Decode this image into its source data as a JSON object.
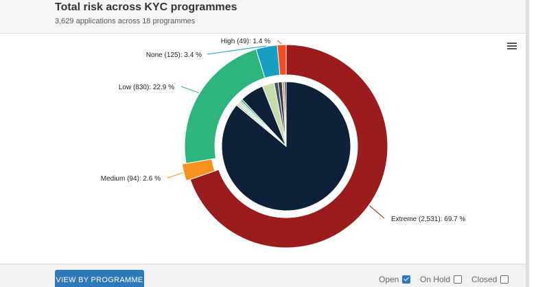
{
  "header": {
    "title": "Total risk across KYC programmes",
    "subtitle": "3,629 applications across 18 programmes"
  },
  "chart_data": {
    "type": "pie",
    "outer_ring": [
      {
        "name": "Extreme",
        "count": 2531,
        "percent": 69.7,
        "label": "Extreme (2,531): 69.7 %",
        "color": "#9b1c1c"
      },
      {
        "name": "Medium",
        "count": 94,
        "percent": 2.6,
        "label": "Medium (94): 2.6 %",
        "color": "#f7931e"
      },
      {
        "name": "Low",
        "count": 830,
        "percent": 22.9,
        "label": "Low (830): 22.9 %",
        "color": "#2eb57e"
      },
      {
        "name": "None",
        "count": 125,
        "percent": 3.4,
        "label": "None (125): 3.4 %",
        "color": "#1a9fc4"
      },
      {
        "name": "High",
        "count": 49,
        "percent": 1.4,
        "label": "High (49): 1.4 %",
        "color": "#f25022"
      }
    ],
    "inner_pie": [
      {
        "percent": 86.0,
        "color": "#0f2039"
      },
      {
        "percent": 0.5,
        "color": "#b7d7a8"
      },
      {
        "percent": 0.5,
        "color": "#c9d6e3"
      },
      {
        "percent": 0.5,
        "color": "#b7d7a8"
      },
      {
        "percent": 0.5,
        "color": "#2eb57e"
      },
      {
        "percent": 6.0,
        "color": "#0f2039"
      },
      {
        "percent": 3.0,
        "color": "#c5dba8"
      },
      {
        "percent": 1.0,
        "color": "#4a5060"
      },
      {
        "percent": 1.0,
        "color": "#333a46"
      },
      {
        "percent": 0.6,
        "color": "#d2986e"
      },
      {
        "percent": 0.4,
        "color": "#1c2a44"
      }
    ]
  },
  "footer": {
    "button_label": "VIEW BY PROGRAMME",
    "filters": [
      {
        "label": "Open",
        "checked": true
      },
      {
        "label": "On Hold",
        "checked": false
      },
      {
        "label": "Closed",
        "checked": false
      }
    ]
  }
}
